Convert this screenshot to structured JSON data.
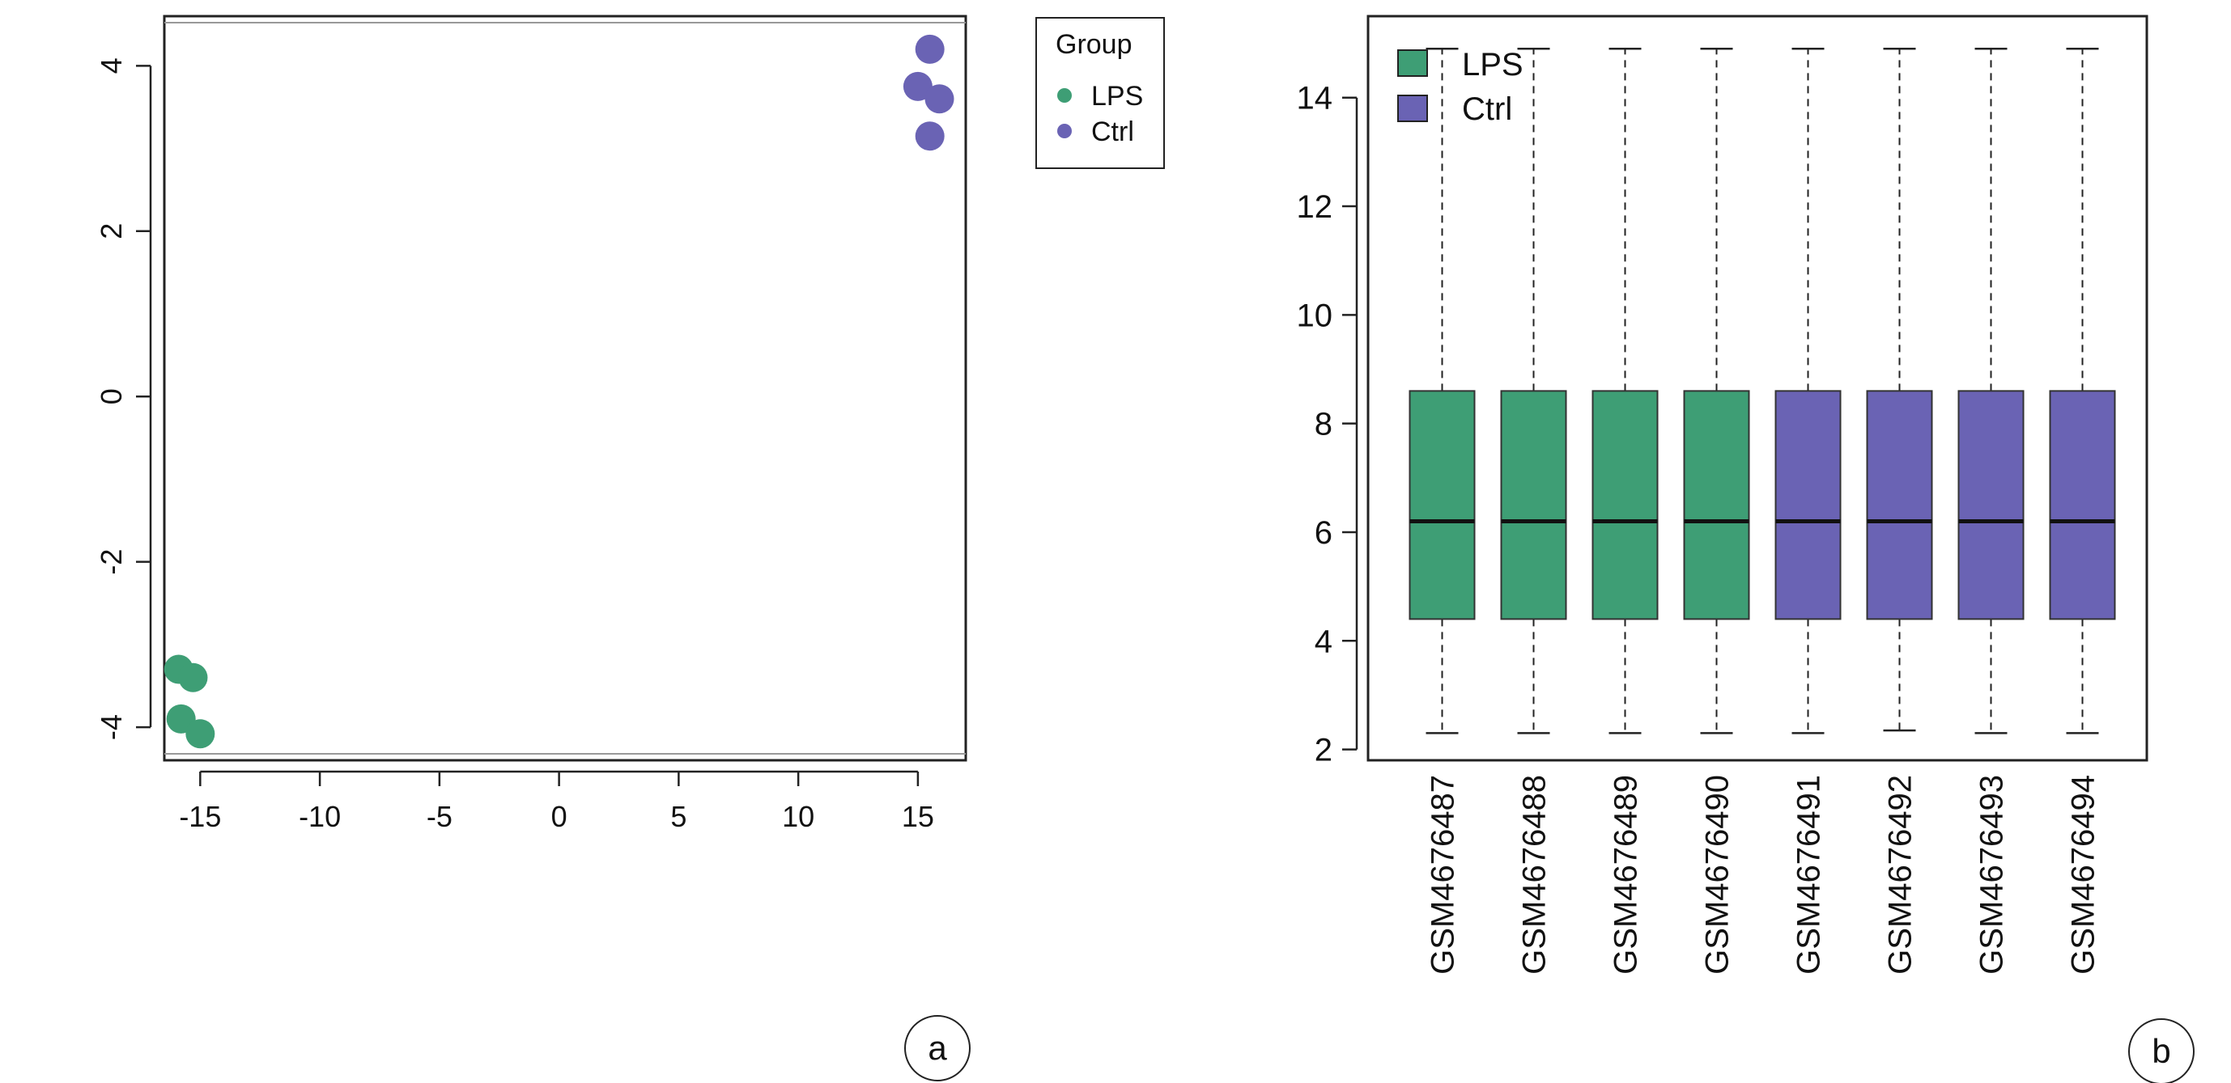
{
  "colors": {
    "lps": "#3e9e75",
    "ctrl": "#6a63b4",
    "axis": "#222222"
  },
  "chart_data": [
    {
      "type": "scatter",
      "panel_label": "a",
      "xlim": [
        -16.5,
        17
      ],
      "ylim": [
        -4.4,
        4.6
      ],
      "x_ticks": [
        -15,
        -10,
        -5,
        0,
        5,
        10,
        15
      ],
      "y_ticks": [
        -4,
        -2,
        0,
        2,
        4
      ],
      "legend": {
        "title": "Group",
        "placement": "outside-top-right",
        "entries": [
          {
            "label": "LPS",
            "color_key": "lps"
          },
          {
            "label": "Ctrl",
            "color_key": "ctrl"
          }
        ]
      },
      "series": [
        {
          "name": "LPS",
          "color_key": "lps",
          "points": [
            {
              "x": -15.9,
              "y": -3.3
            },
            {
              "x": -15.3,
              "y": -3.4
            },
            {
              "x": -15.8,
              "y": -3.9
            },
            {
              "x": -15.0,
              "y": -4.08
            }
          ]
        },
        {
          "name": "Ctrl",
          "color_key": "ctrl",
          "points": [
            {
              "x": 15.5,
              "y": 4.2
            },
            {
              "x": 15.0,
              "y": 3.75
            },
            {
              "x": 15.9,
              "y": 3.6
            },
            {
              "x": 15.5,
              "y": 3.15
            }
          ]
        }
      ]
    },
    {
      "type": "box",
      "panel_label": "b",
      "ylim": [
        1.8,
        15.5
      ],
      "y_ticks": [
        2,
        4,
        6,
        8,
        10,
        12,
        14
      ],
      "legend": {
        "placement": "top-left",
        "entries": [
          {
            "label": "LPS",
            "color_key": "lps"
          },
          {
            "label": "Ctrl",
            "color_key": "ctrl"
          }
        ]
      },
      "boxes": [
        {
          "label": "GSM4676487",
          "group": "lps",
          "min": 2.3,
          "q1": 4.4,
          "median": 6.2,
          "q3": 8.6,
          "max": 14.9
        },
        {
          "label": "GSM4676488",
          "group": "lps",
          "min": 2.3,
          "q1": 4.4,
          "median": 6.2,
          "q3": 8.6,
          "max": 14.9
        },
        {
          "label": "GSM4676489",
          "group": "lps",
          "min": 2.3,
          "q1": 4.4,
          "median": 6.2,
          "q3": 8.6,
          "max": 14.9
        },
        {
          "label": "GSM4676490",
          "group": "lps",
          "min": 2.3,
          "q1": 4.4,
          "median": 6.2,
          "q3": 8.6,
          "max": 14.9
        },
        {
          "label": "GSM4676491",
          "group": "ctrl",
          "min": 2.3,
          "q1": 4.4,
          "median": 6.2,
          "q3": 8.6,
          "max": 14.9
        },
        {
          "label": "GSM4676492",
          "group": "ctrl",
          "min": 2.35,
          "q1": 4.4,
          "median": 6.2,
          "q3": 8.6,
          "max": 14.9
        },
        {
          "label": "GSM4676493",
          "group": "ctrl",
          "min": 2.3,
          "q1": 4.4,
          "median": 6.2,
          "q3": 8.6,
          "max": 14.9
        },
        {
          "label": "GSM4676494",
          "group": "ctrl",
          "min": 2.3,
          "q1": 4.4,
          "median": 6.2,
          "q3": 8.6,
          "max": 14.9
        }
      ]
    }
  ]
}
